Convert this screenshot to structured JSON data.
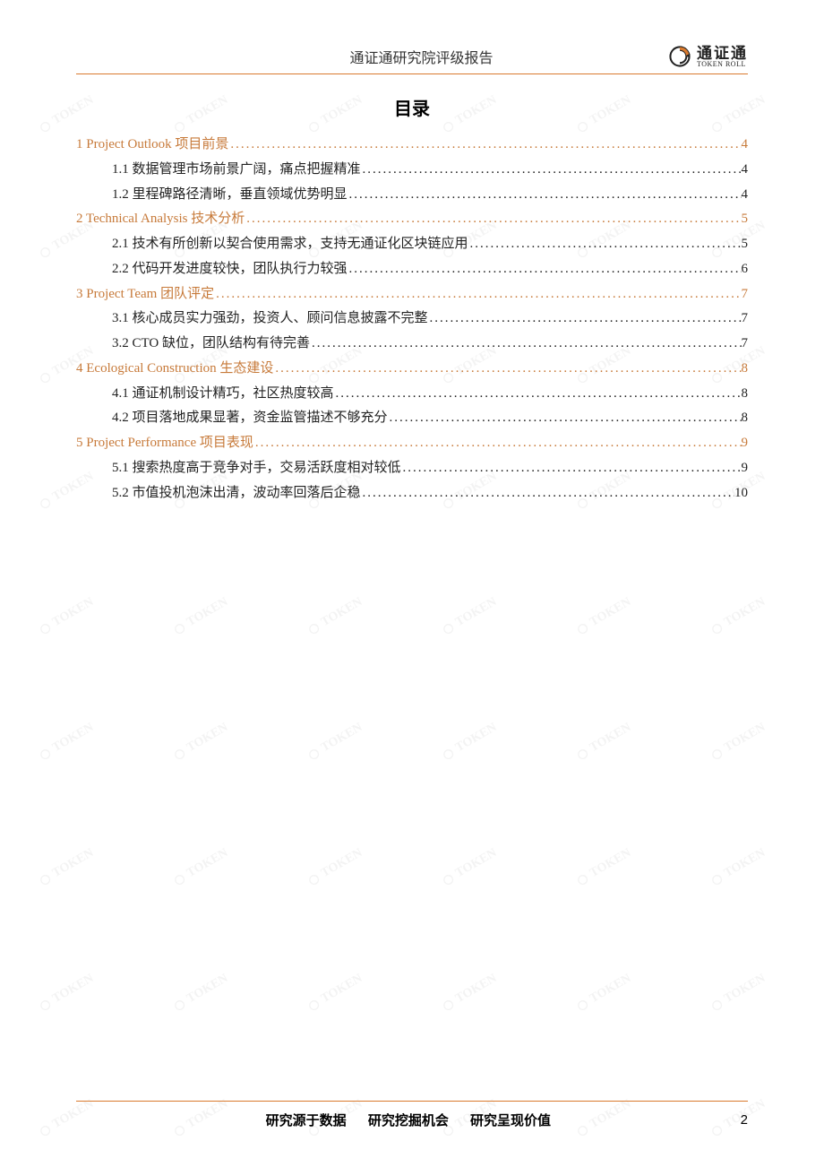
{
  "header": {
    "title": "通证通研究院评级报告",
    "logo_cn": "通证通",
    "logo_en": "TOKEN ROLL"
  },
  "toc_title": "目录",
  "footer": {
    "slogan_1": "研究源于数据",
    "slogan_2": "研究挖掘机会",
    "slogan_3": "研究呈现价值",
    "page_number": "2"
  },
  "colors": {
    "accent": "#c77a3a",
    "rule": "#d97a2e",
    "text": "#222222",
    "watermark": "#e8e8e8"
  },
  "toc": [
    {
      "level": 1,
      "num": "1",
      "label": "Project Outlook  项目前景",
      "page": "4"
    },
    {
      "level": 2,
      "num": "1.1",
      "label": "数据管理市场前景广阔，痛点把握精准",
      "page": "4"
    },
    {
      "level": 2,
      "num": "1.2",
      "label": "里程碑路径清晰，垂直领域优势明显",
      "page": "4"
    },
    {
      "level": 1,
      "num": "2",
      "label": "Technical Analysis  技术分析",
      "page": "5"
    },
    {
      "level": 2,
      "num": "2.1",
      "label": "技术有所创新以契合使用需求，支持无通证化区块链应用",
      "page": "5"
    },
    {
      "level": 2,
      "num": "2.2",
      "label": "代码开发进度较快，团队执行力较强",
      "page": "6"
    },
    {
      "level": 1,
      "num": "3",
      "label": "Project Team  团队评定",
      "page": "7"
    },
    {
      "level": 2,
      "num": "3.1",
      "label": "核心成员实力强劲，投资人、顾问信息披露不完整",
      "page": "7"
    },
    {
      "level": 2,
      "num": "3.2",
      "label": "CTO 缺位，团队结构有待完善",
      "page": "7"
    },
    {
      "level": 1,
      "num": "4",
      "label": "Ecological Construction  生态建设",
      "page": "8"
    },
    {
      "level": 2,
      "num": "4.1",
      "label": "通证机制设计精巧，社区热度较高",
      "page": "8"
    },
    {
      "level": 2,
      "num": "4.2",
      "label": "项目落地成果显著，资金监管描述不够充分",
      "page": "8"
    },
    {
      "level": 1,
      "num": "5",
      "label": "Project Performance  项目表现",
      "page": "9"
    },
    {
      "level": 2,
      "num": "5.1",
      "label": "搜索热度高于竞争对手，交易活跃度相对较低",
      "page": "9"
    },
    {
      "level": 2,
      "num": "5.2",
      "label": "市值投机泡沫出清，波动率回落后企稳",
      "page": "10"
    }
  ],
  "watermark_text": "TOKEN"
}
